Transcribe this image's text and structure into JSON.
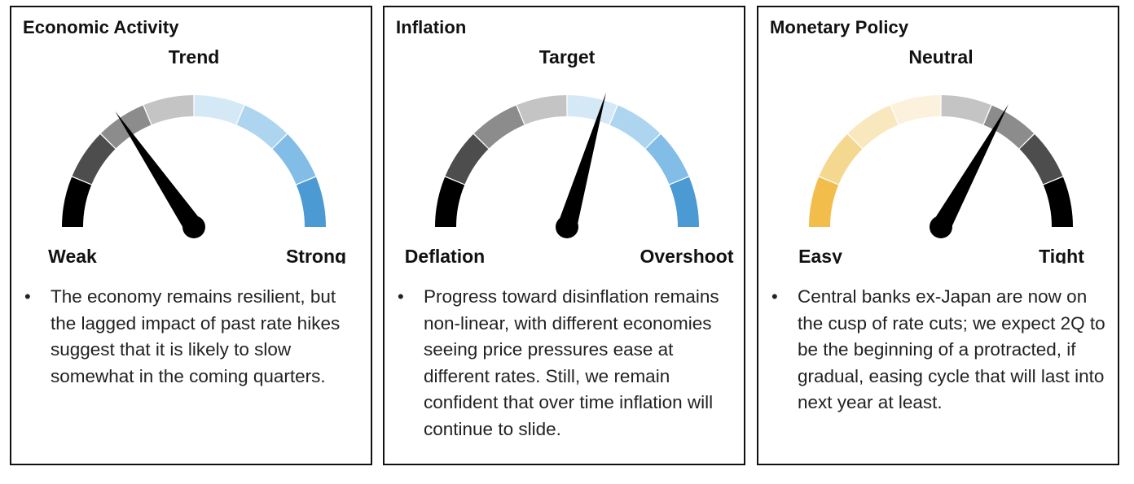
{
  "chart_data": [
    {
      "type": "gauge",
      "title": "Economic Activity",
      "center_label": "Trend",
      "min_label": "Weak",
      "max_label": "Strong",
      "segments": [
        "#000000",
        "#4d4d4d",
        "#8c8c8c",
        "#c4c4c4",
        "#d5e8f6",
        "#add5ef",
        "#82bde8",
        "#4b9ad4"
      ],
      "needle_value": 0.31,
      "bullet": "The economy remains resilient, but the lagged impact of past rate hikes suggest that it is likely to slow somewhat in the coming quarters."
    },
    {
      "type": "gauge",
      "title": "Inflation",
      "center_label": "Target",
      "min_label": "Deflation",
      "max_label": "Overshoot",
      "segments": [
        "#000000",
        "#4d4d4d",
        "#8c8c8c",
        "#c4c4c4",
        "#d5e8f6",
        "#add5ef",
        "#82bde8",
        "#4b9ad4"
      ],
      "needle_value": 0.59,
      "bullet": "Progress toward disinflation remains non-linear, with different economies seeing price pressures ease at different rates. Still, we remain confident that over time inflation will continue to slide."
    },
    {
      "type": "gauge",
      "title": "Monetary Policy",
      "center_label": "Neutral",
      "min_label": "Easy",
      "max_label": "Tight",
      "segments": [
        "#f3bd4c",
        "#f5d88f",
        "#f9e7bd",
        "#fcf1dc",
        "#c4c4c4",
        "#8c8c8c",
        "#4d4d4d",
        "#000000"
      ],
      "needle_value": 0.66,
      "bullet": "Central banks ex-Japan are now on the cusp of rate cuts; we expect 2Q to be the beginning of a protracted, if gradual, easing cycle that will last into next year at least."
    }
  ]
}
